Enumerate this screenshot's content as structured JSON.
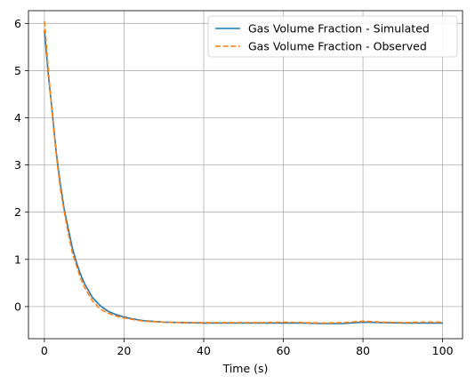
{
  "chart_data": {
    "type": "line",
    "title": "",
    "xlabel": "Time (s)",
    "ylabel": "",
    "xlim": [
      -4,
      105
    ],
    "ylim": [
      -0.68,
      6.27
    ],
    "xticks": [
      0,
      20,
      40,
      60,
      80,
      100
    ],
    "yticks": [
      0,
      1,
      2,
      3,
      4,
      5,
      6
    ],
    "grid": true,
    "legend_position": "top-right",
    "series": [
      {
        "name": "Gas Volume Fraction - Simulated",
        "color": "#1f77b4",
        "style": "solid",
        "x": [
          0,
          1,
          2,
          3,
          4,
          5,
          6,
          7,
          8,
          9,
          10,
          12,
          14,
          16,
          18,
          20,
          22,
          25,
          30,
          35,
          40,
          45,
          50,
          55,
          60,
          65,
          70,
          75,
          80,
          85,
          90,
          95,
          100
        ],
        "y": [
          5.85,
          4.9,
          4.1,
          3.25,
          2.6,
          2.05,
          1.65,
          1.25,
          0.95,
          0.7,
          0.5,
          0.2,
          0.02,
          -0.1,
          -0.17,
          -0.22,
          -0.26,
          -0.3,
          -0.33,
          -0.34,
          -0.35,
          -0.35,
          -0.35,
          -0.35,
          -0.35,
          -0.35,
          -0.36,
          -0.36,
          -0.33,
          -0.34,
          -0.35,
          -0.35,
          -0.35
        ]
      },
      {
        "name": "Gas Volume Fraction - Observed",
        "color": "#ff7f0e",
        "style": "dashed",
        "x": [
          0,
          1,
          2,
          3,
          4,
          5,
          6,
          7,
          8,
          9,
          10,
          12,
          14,
          16,
          18,
          20,
          22,
          25,
          30,
          35,
          40,
          45,
          50,
          55,
          60,
          65,
          70,
          75,
          80,
          85,
          90,
          95,
          100
        ],
        "y": [
          6.05,
          5.0,
          4.05,
          3.2,
          2.5,
          2.0,
          1.55,
          1.15,
          0.88,
          0.62,
          0.42,
          0.13,
          -0.05,
          -0.14,
          -0.2,
          -0.24,
          -0.27,
          -0.31,
          -0.33,
          -0.34,
          -0.34,
          -0.34,
          -0.34,
          -0.34,
          -0.33,
          -0.34,
          -0.35,
          -0.34,
          -0.31,
          -0.33,
          -0.34,
          -0.33,
          -0.33
        ]
      }
    ]
  }
}
